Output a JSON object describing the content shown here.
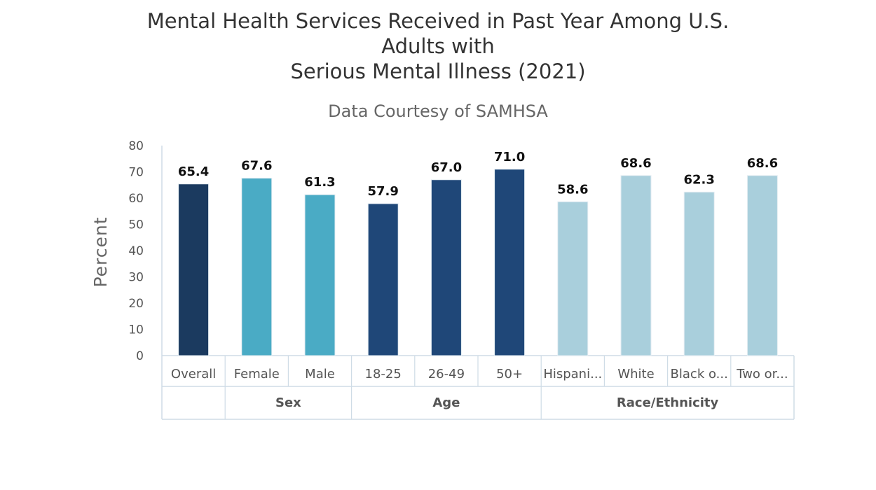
{
  "chart_data": {
    "type": "bar",
    "title": {
      "line1": "Mental Health Services Received in Past Year Among U.S.",
      "line2": "Adults with",
      "line3": "Serious Mental Illness (2021)"
    },
    "subtitle": "Data Courtesy of SAMHSA",
    "ylabel": "Percent",
    "xlabel": "",
    "ylim": [
      0,
      80
    ],
    "yticks": [
      0,
      10,
      20,
      30,
      40,
      50,
      60,
      70,
      80
    ],
    "grid": false,
    "categories": [
      "Overall",
      "Female",
      "Male",
      "18-25",
      "26-49",
      "50+",
      "Hispani...",
      "White",
      "Black o...",
      "Two or..."
    ],
    "values": [
      65.4,
      67.6,
      61.3,
      57.9,
      67.0,
      71.0,
      58.6,
      68.6,
      62.3,
      68.6
    ],
    "value_labels": [
      "65.4",
      "67.6",
      "61.3",
      "57.9",
      "67.0",
      "71.0",
      "58.6",
      "68.6",
      "62.3",
      "68.6"
    ],
    "groups": [
      {
        "label": "",
        "count": 1
      },
      {
        "label": "Sex",
        "count": 2
      },
      {
        "label": "Age",
        "count": 3
      },
      {
        "label": "Race/Ethnicity",
        "count": 4
      }
    ],
    "bar_colors": [
      "#1b3a5f",
      "#4aabc5",
      "#4aabc5",
      "#1f4778",
      "#1f4778",
      "#1f4778",
      "#a9cfdc",
      "#a9cfdc",
      "#a9cfdc",
      "#a9cfdc"
    ]
  }
}
